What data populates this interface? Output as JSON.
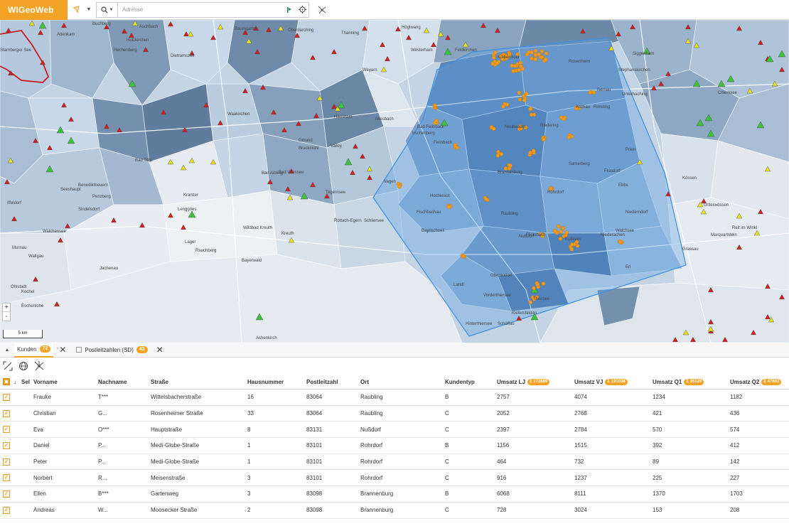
{
  "app": {
    "logo": "WIGeoWeb"
  },
  "toolbar": {
    "search_placeholder": "Adresse",
    "search_value": ""
  },
  "map": {
    "scale_label": "5 km",
    "zoom_in": "+",
    "zoom_out": "-",
    "labels": [
      "Starnberger See",
      "Attenkam",
      "Buchberg",
      "Holzkirchen",
      "Aschbach",
      "Hechenberg",
      "Dietramszell",
      "Baumgarten",
      "Oberdarching",
      "Thanning",
      "Valley",
      "Weyarn",
      "Höglwang",
      "Westerham",
      "Feldkirchen",
      "Kolbermoor",
      "Rosenheim",
      "Stephanskirchen",
      "Riedering",
      "Rimsting",
      "Prien",
      "Siggenham",
      "Unterhaching",
      "Chiemsee",
      "Bad Tölz",
      "Gmund",
      "Waakirchen",
      "Hausham",
      "Miesbach",
      "Irschenberg",
      "Bad Aibling",
      "Bruckmühl",
      "Vagen",
      "Feilnbach",
      "Bad Feilnbach",
      "Brannenburg",
      "Raubling",
      "Nußdorf",
      "Rohrdorf",
      "Neubeuern",
      "Samerberg",
      "Frasdorf",
      "Aschau",
      "Bernau",
      "Lenggries",
      "Bad Wiessee",
      "Tegernsee",
      "Rottach-Egern",
      "Kreuth",
      "Schliersee",
      "Fischbachau",
      "Bayrischzell",
      "Oberaudorf",
      "Kiefersfelden",
      "Flintsbach",
      "Kufstein",
      "Thiersee",
      "Ebbs",
      "Niederndorf",
      "Walchsee",
      "Kössen",
      "Unterwössen",
      "Reit im Winkl",
      "Marquartstein",
      "Grassau",
      "Achenkirch",
      "Jachenau",
      "Kochel",
      "Benediktbeuern",
      "Penzberg",
      "Sindelsdorf",
      "Iffeldorf",
      "Seeshaupt",
      "Murnau",
      "Ohlstadt",
      "Eschenlohe",
      "Walchensee",
      "Wallgau",
      "Vorderthiersee",
      "Hinterthiersee",
      "Landl",
      "Schöffau",
      "Erl",
      "Niederachen",
      "Hochkreut",
      "Kranzer",
      "Lager",
      "Rauchberg",
      "Bayerwald",
      "Wildbad Kreuth"
    ]
  },
  "tabs": [
    {
      "label": "Kunden",
      "count": "72",
      "active": true
    },
    {
      "label": "Postleitzahlen (SD)",
      "count": "43",
      "active": false
    }
  ],
  "table": {
    "sel_header": "Sel",
    "columns": [
      {
        "label": "Vorname"
      },
      {
        "label": "Nachname"
      },
      {
        "label": "Straße"
      },
      {
        "label": "Hausnummer"
      },
      {
        "label": "Postleitzahl"
      },
      {
        "label": "Ort"
      },
      {
        "label": "Kundentyp"
      },
      {
        "label": "Umsatz LJ",
        "sum": "Σ 172889"
      },
      {
        "label": "Umsatz VJ",
        "sum": "Σ 191038"
      },
      {
        "label": "Umsatz Q1",
        "sum": "Σ 35129"
      },
      {
        "label": "Umsatz Q2",
        "sum": "Σ 47602"
      }
    ],
    "rows": [
      [
        "Frauke",
        "T***",
        "Wittelsbacherstraße",
        "16",
        "83064",
        "Raubling",
        "B",
        "2757",
        "4074",
        "1234",
        "1182"
      ],
      [
        "Christian",
        "G...",
        "Rosenheimer Straße",
        "33",
        "83064",
        "Raubling",
        "C",
        "2052",
        "2768",
        "421",
        "436"
      ],
      [
        "Eva",
        "O***",
        "Hauptstraße",
        "8",
        "83131",
        "Nußdorf",
        "C",
        "2397",
        "2784",
        "570",
        "574"
      ],
      [
        "Daniel",
        "P...",
        "Medi-Globe-Straße",
        "1",
        "83101",
        "Rohrdorf",
        "B",
        "1156",
        "1515",
        "392",
        "412"
      ],
      [
        "Peter",
        "P...",
        "Medi-Globe-Straße",
        "1",
        "83101",
        "Rohrdorf",
        "C",
        "464",
        "732",
        "89",
        "142"
      ],
      [
        "Norbert",
        "R...",
        "Meisenstraße",
        "3",
        "83101",
        "Rohrdorf",
        "C",
        "916",
        "1237",
        "225",
        "227"
      ],
      [
        "Ellen",
        "B***",
        "Gartenweg",
        "3",
        "83098",
        "Brannenburg",
        "B",
        "6068",
        "8111",
        "1370",
        "1703"
      ],
      [
        "Andreas",
        "W...",
        "Moosecker Straße",
        "2",
        "83098",
        "Brannenburg",
        "C",
        "728",
        "3024",
        "153",
        "208"
      ]
    ]
  },
  "colors": {
    "brand": "#f2a325",
    "polygon": "#5aa0e6",
    "marker_red": "#d11f1f",
    "marker_yellow": "#e8e020",
    "marker_green": "#3dc23d",
    "marker_orange": "#f29a1e"
  }
}
